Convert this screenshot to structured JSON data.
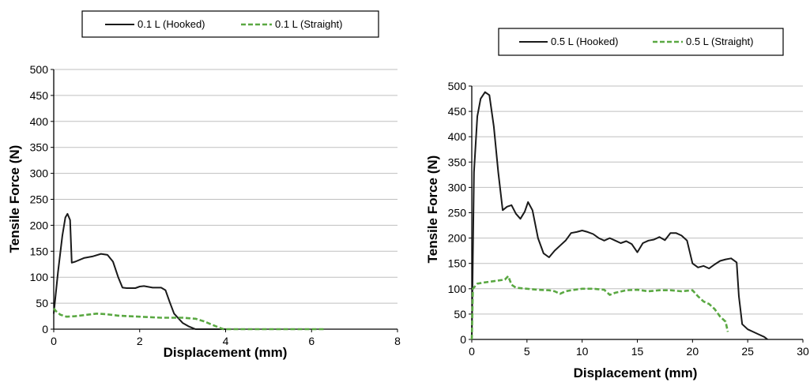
{
  "chart_data": [
    {
      "type": "line",
      "xlabel": "Displacement  (mm)",
      "ylabel": "Tensile  Force  (N)",
      "xlim": [
        0,
        8
      ],
      "ylim": [
        0,
        500
      ],
      "xticks": [
        0,
        2,
        4,
        6,
        8
      ],
      "yticks": [
        0,
        50,
        100,
        150,
        200,
        250,
        300,
        350,
        400,
        450,
        500
      ],
      "grid": "horizontal",
      "legend_position": "top",
      "series": [
        {
          "name": "0.1 L (Hooked)",
          "color": "#1a1a1a",
          "style": "solid",
          "x": [
            0,
            0.1,
            0.2,
            0.27,
            0.32,
            0.38,
            0.42,
            0.5,
            0.7,
            0.9,
            1.1,
            1.25,
            1.38,
            1.5,
            1.6,
            1.7,
            1.9,
            2.0,
            2.1,
            2.3,
            2.5,
            2.6,
            2.7,
            2.8,
            3.0,
            3.15,
            3.3,
            3.5,
            4.0
          ],
          "y": [
            30,
            110,
            180,
            215,
            222,
            210,
            128,
            130,
            137,
            140,
            145,
            143,
            130,
            100,
            80,
            79,
            79,
            82,
            83,
            80,
            80,
            75,
            52,
            30,
            12,
            5,
            0,
            0,
            0
          ]
        },
        {
          "name": "0.1 L (Straight)",
          "color": "#5aa842",
          "style": "dashed",
          "x": [
            0,
            0.05,
            0.15,
            0.3,
            0.5,
            0.8,
            1.0,
            1.2,
            1.5,
            2.0,
            2.5,
            3.0,
            3.3,
            3.5,
            3.7,
            3.85,
            3.95,
            4.5,
            5.0,
            5.5,
            6.0,
            6.3
          ],
          "y": [
            40,
            35,
            28,
            24,
            25,
            28,
            30,
            29,
            26,
            24,
            22,
            22,
            20,
            15,
            8,
            3,
            0,
            0,
            0,
            0,
            0,
            0
          ]
        }
      ]
    },
    {
      "type": "line",
      "xlabel": "Displacement  (mm)",
      "ylabel": "Tensile  Force  (N)",
      "xlim": [
        0,
        30
      ],
      "ylim": [
        0,
        500
      ],
      "xticks": [
        0,
        5,
        10,
        15,
        20,
        25,
        30
      ],
      "yticks": [
        0,
        50,
        100,
        150,
        200,
        250,
        300,
        350,
        400,
        450,
        500
      ],
      "grid": "horizontal",
      "legend_position": "top",
      "series": [
        {
          "name": "0.5 L (Hooked)",
          "color": "#1a1a1a",
          "style": "solid",
          "x": [
            0,
            0.2,
            0.5,
            0.8,
            1.2,
            1.6,
            2.0,
            2.4,
            2.8,
            3.2,
            3.6,
            4.0,
            4.4,
            4.8,
            5.1,
            5.5,
            6.0,
            6.5,
            7.0,
            7.5,
            8.0,
            8.5,
            9.0,
            9.5,
            10.0,
            10.5,
            11.0,
            11.5,
            12.0,
            12.5,
            13.0,
            13.5,
            14.0,
            14.5,
            15.0,
            15.5,
            16.0,
            16.5,
            17.0,
            17.5,
            18.0,
            18.5,
            19.0,
            19.5,
            20.0,
            20.5,
            21.0,
            21.5,
            22.0,
            22.5,
            23.0,
            23.5,
            24.0,
            24.2,
            24.5,
            25.0,
            25.5,
            26.0,
            26.5,
            26.8
          ],
          "y": [
            0,
            330,
            440,
            475,
            488,
            482,
            420,
            330,
            255,
            262,
            265,
            248,
            238,
            252,
            271,
            255,
            200,
            170,
            162,
            175,
            185,
            195,
            210,
            212,
            215,
            212,
            208,
            200,
            195,
            200,
            195,
            190,
            194,
            188,
            172,
            190,
            195,
            197,
            202,
            196,
            210,
            210,
            205,
            195,
            150,
            142,
            145,
            140,
            148,
            155,
            158,
            160,
            152,
            85,
            30,
            20,
            15,
            10,
            5,
            0
          ]
        },
        {
          "name": "0.5 L (Straight)",
          "color": "#5aa842",
          "style": "dashed",
          "x": [
            0,
            0.1,
            0.5,
            1.0,
            2.0,
            3.0,
            3.3,
            3.6,
            4.0,
            5.0,
            6.0,
            7.0,
            7.5,
            8.0,
            8.5,
            9.0,
            10.0,
            11.0,
            12.0,
            12.5,
            13.0,
            14.0,
            15.0,
            16.0,
            17.0,
            18.0,
            19.0,
            20.0,
            20.5,
            21.0,
            21.5,
            22.0,
            22.5,
            23.0,
            23.2
          ],
          "y": [
            0,
            100,
            110,
            112,
            115,
            118,
            125,
            108,
            102,
            100,
            98,
            97,
            95,
            90,
            95,
            97,
            100,
            100,
            98,
            88,
            92,
            97,
            98,
            95,
            97,
            97,
            95,
            97,
            85,
            75,
            70,
            60,
            45,
            35,
            15
          ]
        }
      ]
    }
  ]
}
